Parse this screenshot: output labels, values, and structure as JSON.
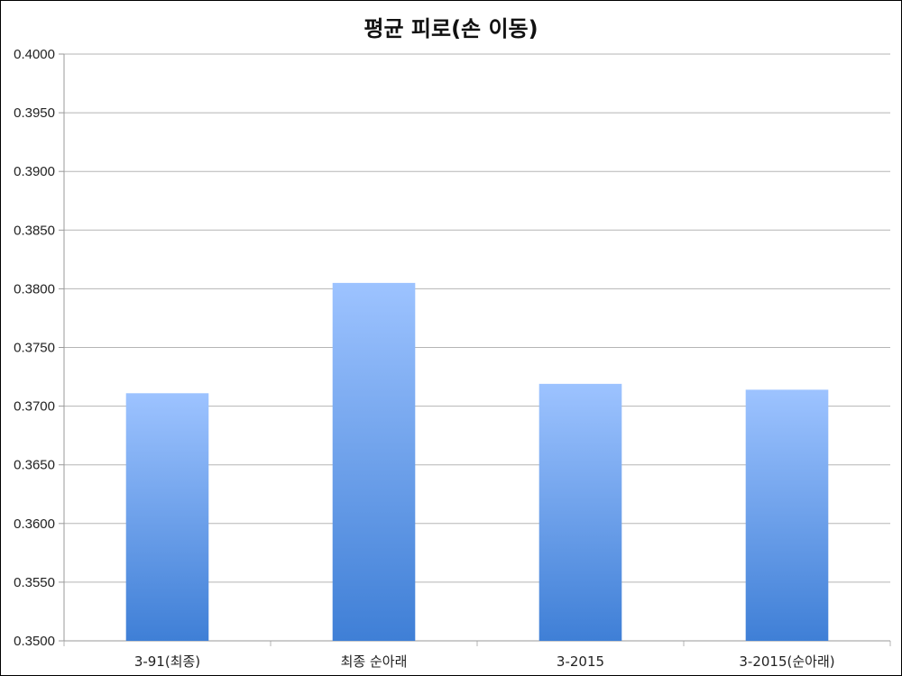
{
  "chart_data": {
    "type": "bar",
    "title": "평균 피로(손 이동)",
    "xlabel": "",
    "ylabel": "",
    "categories": [
      "3-91(최종)",
      "최종 순아래",
      "3-2015",
      "3-2015(순아래)"
    ],
    "values": [
      0.3711,
      0.3805,
      0.3719,
      0.3714
    ],
    "ylim": [
      0.35,
      0.4
    ],
    "ytick_step": 0.005,
    "ytick_labels": [
      "0.3500",
      "0.3550",
      "0.3600",
      "0.3650",
      "0.3700",
      "0.3750",
      "0.3800",
      "0.3850",
      "0.3900",
      "0.3950",
      "0.4000"
    ],
    "grid": true,
    "legend": "none",
    "colors": {
      "bar_top": "#9dc3ff",
      "bar_bottom": "#3f7fd6",
      "grid": "#b5b5b5",
      "axis": "#9a9a9a"
    }
  }
}
